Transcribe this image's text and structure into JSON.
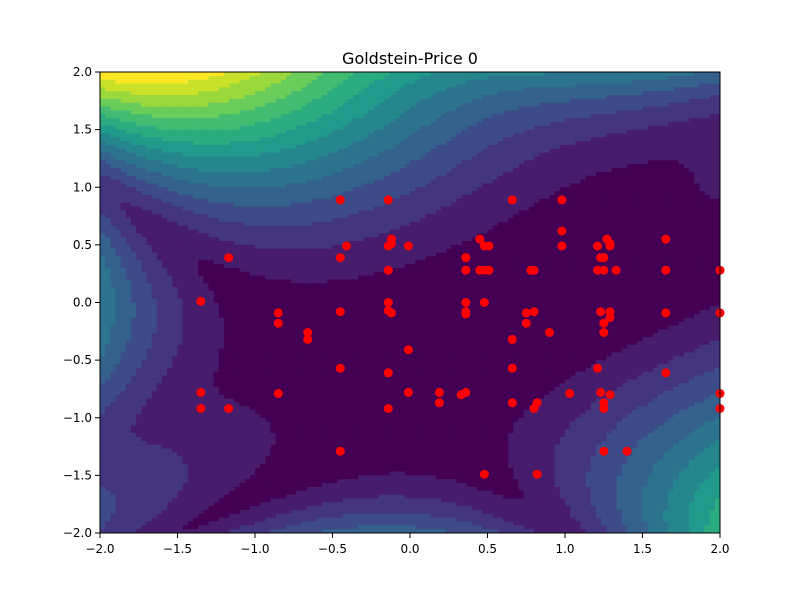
{
  "chart_data": {
    "type": "scatter",
    "title": "Goldstein-Price 0",
    "xlabel": "",
    "ylabel": "",
    "xlim": [
      -2.0,
      2.0
    ],
    "ylim": [
      -2.0,
      2.0
    ],
    "x_ticks": [
      -2.0,
      -1.5,
      -1.0,
      -0.5,
      0.0,
      0.5,
      1.0,
      1.5,
      2.0
    ],
    "x_tick_labels": [
      "−2.0",
      "−1.5",
      "−1.0",
      "−0.5",
      "0.0",
      "0.5",
      "1.0",
      "1.5",
      "2.0"
    ],
    "y_ticks": [
      -2.0,
      -1.5,
      -1.0,
      -0.5,
      0.0,
      0.5,
      1.0,
      1.5,
      2.0
    ],
    "y_tick_labels": [
      "−2.0",
      "−1.5",
      "−1.0",
      "−0.5",
      "0.0",
      "0.5",
      "1.0",
      "1.5",
      "2.0"
    ],
    "grid": false,
    "background": "filled contour of the Goldstein-Price function (log-scaled colours, viridis)",
    "colormap": [
      "#440154",
      "#482878",
      "#3e4989",
      "#31688e",
      "#26828e",
      "#1f9e89",
      "#35b779",
      "#6ece58",
      "#b5de2b",
      "#fde725"
    ],
    "marker_color": "#ff0000",
    "points": [
      [
        -1.35,
        0.01
      ],
      [
        -1.35,
        -0.78
      ],
      [
        -1.35,
        -0.92
      ],
      [
        -1.17,
        0.39
      ],
      [
        -1.17,
        -0.92
      ],
      [
        -0.85,
        -0.09
      ],
      [
        -0.85,
        -0.18
      ],
      [
        -0.85,
        -0.79
      ],
      [
        -0.66,
        -0.26
      ],
      [
        -0.66,
        -0.32
      ],
      [
        -0.45,
        0.89
      ],
      [
        -0.45,
        0.39
      ],
      [
        -0.45,
        -0.08
      ],
      [
        -0.45,
        -0.57
      ],
      [
        -0.45,
        -1.29
      ],
      [
        -0.41,
        0.49
      ],
      [
        -0.14,
        0.89
      ],
      [
        -0.14,
        0.49
      ],
      [
        -0.14,
        0.28
      ],
      [
        -0.14,
        0.0
      ],
      [
        -0.14,
        -0.07
      ],
      [
        -0.14,
        -0.61
      ],
      [
        -0.14,
        -0.92
      ],
      [
        -0.12,
        0.55
      ],
      [
        -0.12,
        0.51
      ],
      [
        -0.12,
        -0.09
      ],
      [
        -0.01,
        0.49
      ],
      [
        -0.01,
        -0.41
      ],
      [
        -0.01,
        -0.78
      ],
      [
        0.19,
        -0.78
      ],
      [
        0.19,
        -0.87
      ],
      [
        0.33,
        -0.8
      ],
      [
        0.36,
        0.39
      ],
      [
        0.36,
        0.28
      ],
      [
        0.36,
        0.0
      ],
      [
        0.36,
        -0.08
      ],
      [
        0.36,
        -0.1
      ],
      [
        0.36,
        -0.78
      ],
      [
        0.45,
        0.55
      ],
      [
        0.45,
        0.28
      ],
      [
        0.48,
        0.49
      ],
      [
        0.48,
        0.28
      ],
      [
        0.48,
        0.0
      ],
      [
        0.48,
        -1.49
      ],
      [
        0.51,
        0.49
      ],
      [
        0.51,
        0.28
      ],
      [
        0.66,
        0.89
      ],
      [
        0.66,
        -0.32
      ],
      [
        0.66,
        -0.57
      ],
      [
        0.66,
        -0.87
      ],
      [
        0.75,
        -0.09
      ],
      [
        0.75,
        -0.18
      ],
      [
        0.78,
        0.28
      ],
      [
        0.8,
        0.28
      ],
      [
        0.8,
        -0.08
      ],
      [
        0.8,
        -0.92
      ],
      [
        0.82,
        -0.87
      ],
      [
        0.82,
        -1.49
      ],
      [
        0.9,
        -0.26
      ],
      [
        0.98,
        0.89
      ],
      [
        0.98,
        0.62
      ],
      [
        0.98,
        0.49
      ],
      [
        1.03,
        -0.79
      ],
      [
        1.21,
        0.49
      ],
      [
        1.21,
        0.28
      ],
      [
        1.21,
        -0.57
      ],
      [
        1.23,
        0.39
      ],
      [
        1.23,
        -0.08
      ],
      [
        1.23,
        -0.78
      ],
      [
        1.25,
        0.39
      ],
      [
        1.25,
        0.28
      ],
      [
        1.25,
        -0.18
      ],
      [
        1.25,
        -0.26
      ],
      [
        1.25,
        -0.87
      ],
      [
        1.25,
        -0.92
      ],
      [
        1.25,
        -1.29
      ],
      [
        1.27,
        0.55
      ],
      [
        1.29,
        0.51
      ],
      [
        1.29,
        0.49
      ],
      [
        1.29,
        -0.08
      ],
      [
        1.29,
        -0.13
      ],
      [
        1.29,
        -0.8
      ],
      [
        1.33,
        0.28
      ],
      [
        1.4,
        -1.29
      ],
      [
        1.65,
        0.55
      ],
      [
        1.65,
        0.28
      ],
      [
        1.65,
        -0.09
      ],
      [
        1.65,
        -0.61
      ],
      [
        2.0,
        0.28
      ],
      [
        2.0,
        -0.09
      ],
      [
        2.0,
        -0.79
      ],
      [
        2.0,
        -0.92
      ]
    ]
  }
}
